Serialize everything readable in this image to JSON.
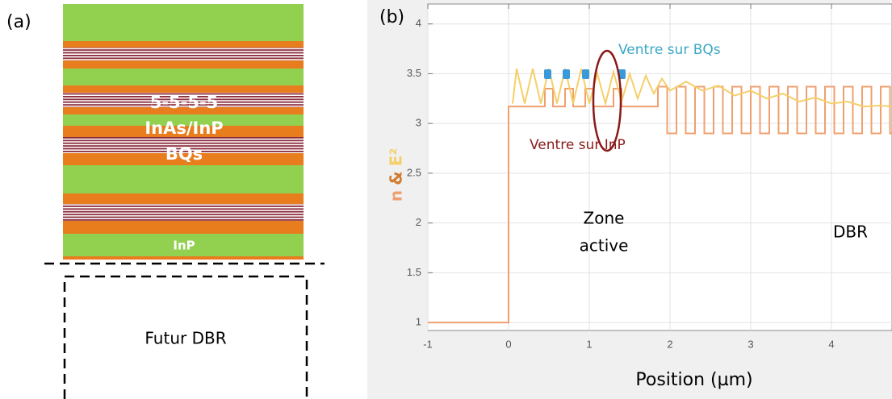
{
  "panel_a": {
    "label": "(a)",
    "stack_text": [
      "5-5-5-5",
      "InAs/InP",
      "BQs"
    ],
    "layer_text": "InP",
    "future_text": "Futur DBR"
  },
  "chart_data": {
    "type": "line",
    "panel_label": "(b)",
    "x_label": "Position (µm)",
    "y_label": [
      "n",
      "&",
      "E²"
    ],
    "annotations": [
      "Ventre sur BQs",
      "Ventre sur InP",
      "Zone",
      "active",
      "DBR"
    ],
    "xlim": [
      -1,
      4.75
    ],
    "ylim": [
      0.92,
      4.2
    ],
    "xticks": [
      -1,
      0,
      1,
      2,
      3,
      4
    ],
    "yticks": [
      1,
      1.5,
      2,
      2.5,
      3,
      3.5,
      4
    ],
    "grid": true,
    "series": [
      {
        "name": "n",
        "color": "#f0a070",
        "x": [
          -1,
          0,
          0,
          0.45,
          0.45,
          0.55,
          0.55,
          0.7,
          0.7,
          0.8,
          0.8,
          0.95,
          0.95,
          1.05,
          1.05,
          1.3,
          1.3,
          1.4,
          1.4,
          1.85,
          1.85,
          1.965,
          1.965,
          2.08,
          2.08,
          2.195,
          2.195,
          2.31,
          2.31,
          2.425,
          2.425,
          2.54,
          2.54,
          2.655,
          2.655,
          2.77,
          2.77,
          2.885,
          2.885,
          3.0,
          3.0,
          3.115,
          3.115,
          3.23,
          3.23,
          3.345,
          3.345,
          3.46,
          3.46,
          3.575,
          3.575,
          3.69,
          3.69,
          3.805,
          3.805,
          3.92,
          3.92,
          4.035,
          4.035,
          4.15,
          4.15,
          4.265,
          4.265,
          4.38,
          4.38,
          4.495,
          4.495,
          4.61,
          4.61,
          4.725,
          4.725,
          4.75
        ],
        "values": [
          1,
          1,
          3.17,
          3.17,
          3.35,
          3.35,
          3.17,
          3.17,
          3.35,
          3.35,
          3.17,
          3.17,
          3.35,
          3.35,
          3.17,
          3.17,
          3.35,
          3.35,
          3.17,
          3.17,
          3.37,
          3.37,
          2.9,
          2.9,
          3.37,
          3.37,
          2.9,
          2.9,
          3.37,
          3.37,
          2.9,
          2.9,
          3.37,
          3.37,
          2.9,
          2.9,
          3.37,
          3.37,
          2.9,
          2.9,
          3.37,
          3.37,
          2.9,
          2.9,
          3.37,
          3.37,
          2.9,
          2.9,
          3.37,
          3.37,
          2.9,
          2.9,
          3.37,
          3.37,
          2.9,
          2.9,
          3.37,
          3.37,
          2.9,
          2.9,
          3.37,
          3.37,
          2.9,
          2.9,
          3.37,
          3.37,
          2.9,
          2.9,
          3.37,
          3.37,
          2.9,
          2.9
        ]
      },
      {
        "name": "E²",
        "color": "#f5cf6a",
        "x": [
          0.05,
          0.1,
          0.2,
          0.3,
          0.4,
          0.5,
          0.6,
          0.7,
          0.8,
          0.9,
          1.0,
          1.1,
          1.2,
          1.3,
          1.4,
          1.5,
          1.6,
          1.7,
          1.8,
          1.9,
          2.0,
          2.2,
          2.4,
          2.6,
          2.8,
          3.0,
          3.2,
          3.4,
          3.6,
          3.8,
          4.0,
          4.2,
          4.4,
          4.6,
          4.75
        ],
        "values": [
          3.2,
          3.55,
          3.2,
          3.55,
          3.2,
          3.55,
          3.2,
          3.55,
          3.2,
          3.55,
          3.2,
          3.5,
          3.2,
          3.52,
          3.22,
          3.5,
          3.25,
          3.48,
          3.3,
          3.45,
          3.33,
          3.42,
          3.33,
          3.38,
          3.28,
          3.33,
          3.25,
          3.3,
          3.22,
          3.26,
          3.2,
          3.22,
          3.17,
          3.18,
          3.17
        ]
      }
    ]
  }
}
